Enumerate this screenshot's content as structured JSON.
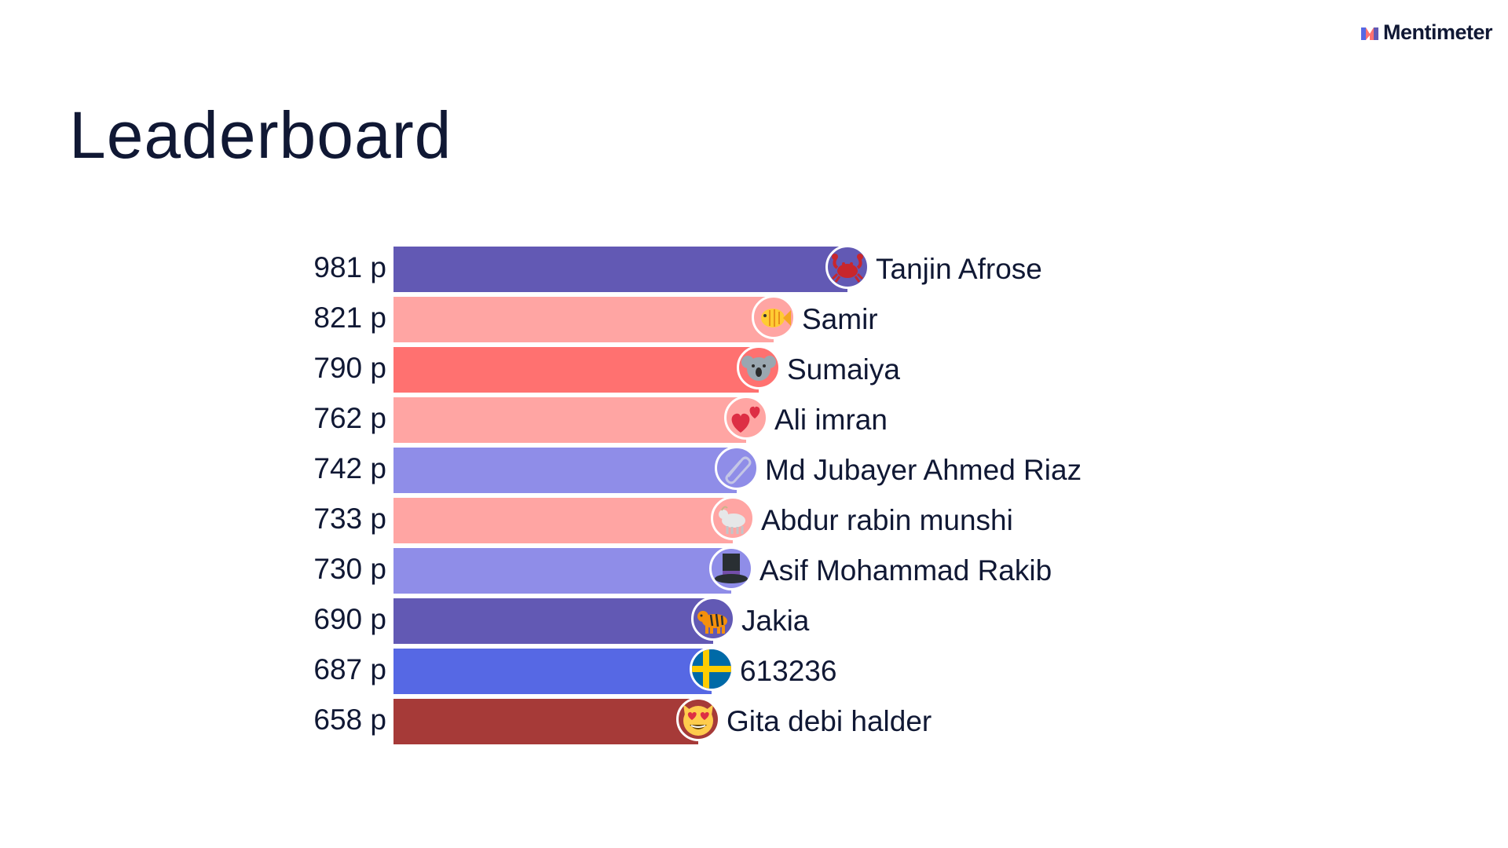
{
  "brand": {
    "name": "Mentimeter"
  },
  "page": {
    "title": "Leaderboard"
  },
  "chart_data": {
    "type": "bar",
    "orientation": "horizontal",
    "categories": [
      "Tanjin Afrose",
      "Samir",
      "Sumaiya",
      "Ali imran",
      "Md Jubayer Ahmed Riaz",
      "Abdur rabin munshi",
      "Asif Mohammad Rakib",
      "Jakia",
      "613236",
      "Gita debi halder"
    ],
    "values": [
      981,
      821,
      790,
      762,
      742,
      733,
      730,
      690,
      687,
      658
    ],
    "xlim": [
      0,
      981
    ],
    "grid": false
  },
  "leaderboard": {
    "entries": [
      {
        "score": "981 p",
        "name": "Tanjin Afrose",
        "points": 981,
        "color": "#6259b4",
        "avatar_bg": "#6259b4",
        "icon": "crab-icon"
      },
      {
        "score": "821 p",
        "name": "Samir",
        "points": 821,
        "color": "#ffa5a3",
        "avatar_bg": "#ffa5a3",
        "icon": "fish-icon"
      },
      {
        "score": "790 p",
        "name": "Sumaiya",
        "points": 790,
        "color": "#ff7170",
        "avatar_bg": "#ff7170",
        "icon": "koala-icon"
      },
      {
        "score": "762 p",
        "name": "Ali imran",
        "points": 762,
        "color": "#ffa5a3",
        "avatar_bg": "#ffa5a3",
        "icon": "two-hearts-icon"
      },
      {
        "score": "742 p",
        "name": "Md Jubayer Ahmed Riaz",
        "points": 742,
        "color": "#8f8de8",
        "avatar_bg": "#8f8de8",
        "icon": "paperclip-icon"
      },
      {
        "score": "733 p",
        "name": "Abdur rabin munshi",
        "points": 733,
        "color": "#ffa5a3",
        "avatar_bg": "#ffa5a3",
        "icon": "goat-icon"
      },
      {
        "score": "730 p",
        "name": "Asif Mohammad Rakib",
        "points": 730,
        "color": "#8f8de8",
        "avatar_bg": "#8f8de8",
        "icon": "top-hat-icon"
      },
      {
        "score": "690 p",
        "name": "Jakia",
        "points": 690,
        "color": "#6259b4",
        "avatar_bg": "#6259b4",
        "icon": "tiger-icon"
      },
      {
        "score": "687 p",
        "name": "613236",
        "points": 687,
        "color": "#5668e4",
        "avatar_bg": "#5668e4",
        "icon": "sweden-flag-icon"
      },
      {
        "score": "658 p",
        "name": "Gita debi halder",
        "points": 658,
        "color": "#a63a38",
        "avatar_bg": "#a63a38",
        "icon": "heart-eyes-cat-icon"
      }
    ]
  }
}
